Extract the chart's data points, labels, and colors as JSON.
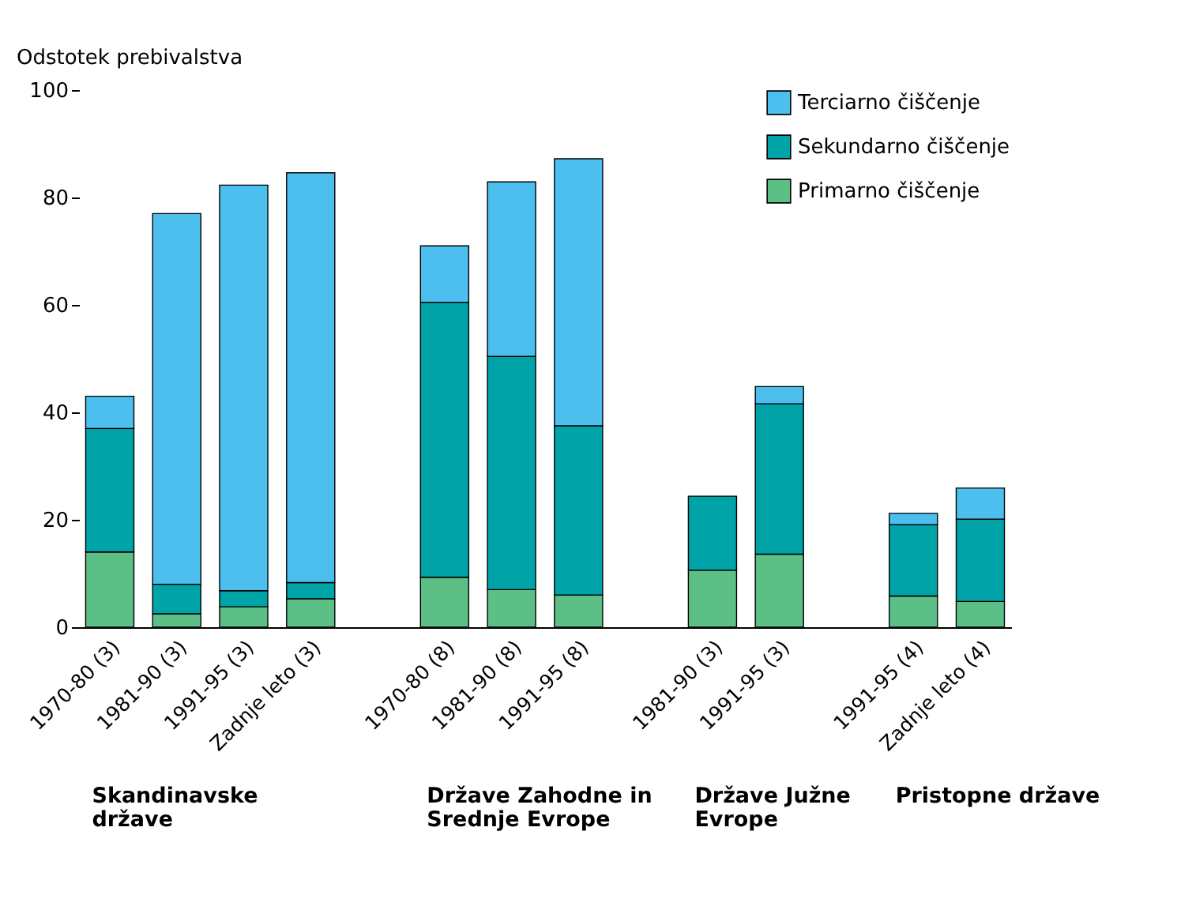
{
  "chart_data": {
    "type": "bar",
    "stacked": true,
    "ylabel": "Odstotek prebivalstva",
    "categories": [
      "1970-80 (3)",
      "1981-90 (3)",
      "1991-95 (3)",
      "Zadnje leto (3)",
      null,
      "1970-80 (8)",
      "1981-90 (8)",
      "1991-95 (8)",
      null,
      "1981-90 (3)",
      "1991-95 (3)",
      null,
      "1991-95 (4)",
      "Zadnje leto (4)"
    ],
    "series": [
      {
        "name": "Primarno čiščenje",
        "color": "#5cbf86",
        "values": [
          14,
          2.5,
          3.8,
          5.3,
          null,
          9.3,
          7,
          6,
          null,
          10.6,
          13.6,
          null,
          5.8,
          4.8
        ]
      },
      {
        "name": "Sekundarno čiščenje",
        "color": "#00a3a8",
        "values": [
          23,
          5.5,
          3,
          3,
          null,
          51.2,
          43.4,
          31.5,
          null,
          13.8,
          28,
          null,
          13.3,
          15.3
        ]
      },
      {
        "name": "Terciarno čiščenje",
        "color": "#4dbfef",
        "values": [
          6,
          69,
          75.5,
          76.3,
          null,
          10.5,
          32.5,
          49.7,
          null,
          null,
          3.2,
          null,
          2.1,
          5.8
        ]
      }
    ],
    "ylim": [
      0,
      100
    ],
    "yticks": [
      0,
      20,
      40,
      60,
      80,
      100
    ],
    "grid": false,
    "legend": "top right",
    "annotations": [
      "Skandinavske države",
      "Države Zahodne in Srednje Evrope",
      "Države Južne Evrope",
      "Pristopne države"
    ]
  }
}
